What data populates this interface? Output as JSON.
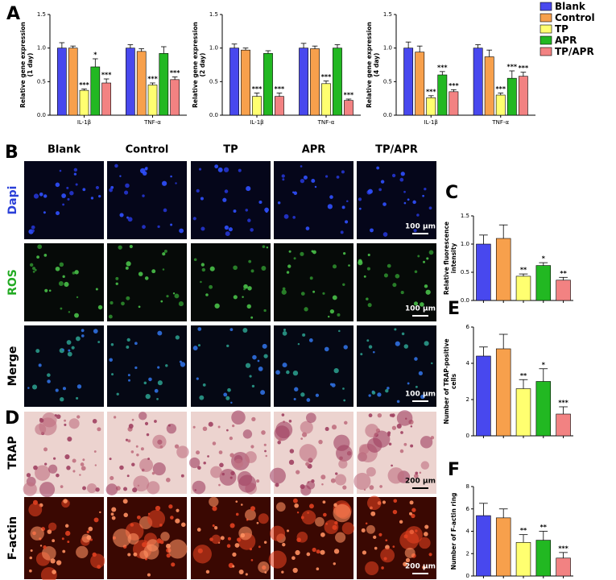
{
  "chart_data": [
    {
      "type": "grouped-bar",
      "ylabel": [
        "Relative gene expression",
        "(1 day)"
      ],
      "categories": [
        "IL-1β",
        "TNF-α"
      ],
      "ylim": [
        0,
        1.5
      ],
      "yticks": [
        {
          "value": 0,
          "label": "0.0"
        },
        0.5,
        {
          "value": 1,
          "label": "1.0"
        },
        1.5
      ],
      "series": [
        {
          "name": "Blank",
          "color": "#4848ee",
          "values": [
            1.0,
            1.0
          ],
          "errors": [
            0.08,
            0.05
          ],
          "annotations": [
            null,
            null
          ]
        },
        {
          "name": "Control",
          "color": "#f7a04c",
          "values": [
            1.0,
            0.95
          ],
          "errors": [
            0.03,
            0.04
          ],
          "annotations": [
            null,
            null
          ]
        },
        {
          "name": "TP",
          "color": "#ffff70",
          "values": [
            0.37,
            0.45
          ],
          "errors": [
            0.02,
            0.03
          ],
          "annotations": [
            "***",
            "***"
          ]
        },
        {
          "name": "APR",
          "color": "#22b822",
          "values": [
            0.72,
            0.92
          ],
          "errors": [
            0.12,
            0.1
          ],
          "annotations": [
            "*",
            null
          ]
        },
        {
          "name": "TP/APR",
          "color": "#f28282",
          "values": [
            0.48,
            0.53
          ],
          "errors": [
            0.06,
            0.04
          ],
          "annotations": [
            "***",
            "***"
          ]
        }
      ]
    },
    {
      "type": "grouped-bar",
      "ylabel": [
        "Relative gene expression",
        "(2 day)"
      ],
      "categories": [
        "IL-1β",
        "TNF-α"
      ],
      "ylim": [
        0,
        1.5
      ],
      "yticks": [
        {
          "value": 0,
          "label": "0.0"
        },
        0.5,
        {
          "value": 1,
          "label": "1.0"
        },
        1.5
      ],
      "series": [
        {
          "color": "#4848ee",
          "values": [
            1.0,
            1.0
          ],
          "errors": [
            0.06,
            0.07
          ],
          "annotations": [
            null,
            null
          ]
        },
        {
          "color": "#f7a04c",
          "values": [
            0.97,
            0.99
          ],
          "errors": [
            0.03,
            0.04
          ],
          "annotations": [
            null,
            null
          ]
        },
        {
          "color": "#ffff70",
          "values": [
            0.28,
            0.47
          ],
          "errors": [
            0.05,
            0.04
          ],
          "annotations": [
            "***",
            "***"
          ]
        },
        {
          "color": "#22b822",
          "values": [
            0.92,
            1.0
          ],
          "errors": [
            0.04,
            0.05
          ],
          "annotations": [
            null,
            null
          ]
        },
        {
          "color": "#f28282",
          "values": [
            0.28,
            0.22
          ],
          "errors": [
            0.05,
            0.02
          ],
          "annotations": [
            "***",
            "***"
          ]
        }
      ]
    },
    {
      "type": "grouped-bar",
      "ylabel": [
        "Relative gene expression",
        "(4 day)"
      ],
      "categories": [
        "IL-1β",
        "TNF-α"
      ],
      "ylim": [
        0,
        1.5
      ],
      "yticks": [
        {
          "value": 0,
          "label": "0.0"
        },
        0.5,
        {
          "value": 1,
          "label": "1.0"
        },
        1.5
      ],
      "series": [
        {
          "color": "#4848ee",
          "values": [
            1.0,
            1.0
          ],
          "errors": [
            0.09,
            0.05
          ],
          "annotations": [
            null,
            null
          ]
        },
        {
          "color": "#f7a04c",
          "values": [
            0.94,
            0.87
          ],
          "errors": [
            0.09,
            0.1
          ],
          "annotations": [
            null,
            null
          ]
        },
        {
          "color": "#ffff70",
          "values": [
            0.26,
            0.3
          ],
          "errors": [
            0.03,
            0.03
          ],
          "annotations": [
            "***",
            "***"
          ]
        },
        {
          "color": "#22b822",
          "values": [
            0.6,
            0.55
          ],
          "errors": [
            0.05,
            0.11
          ],
          "annotations": [
            "***",
            "***"
          ]
        },
        {
          "color": "#f28282",
          "values": [
            0.35,
            0.58
          ],
          "errors": [
            0.03,
            0.06
          ],
          "annotations": [
            "***",
            "***"
          ]
        }
      ]
    },
    {
      "type": "bar",
      "ylabel": [
        "Relative fluorescence",
        "intensity"
      ],
      "ylim": [
        0,
        1.5
      ],
      "yticks": [
        {
          "value": 0,
          "label": "0.0"
        },
        0.5,
        {
          "value": 1,
          "label": "1.0"
        },
        1.5
      ],
      "values": [
        1.0,
        1.1,
        0.43,
        0.62,
        0.36
      ],
      "errors": [
        0.16,
        0.24,
        0.04,
        0.05,
        0.05
      ],
      "colors": [
        "#4848ee",
        "#f7a04c",
        "#ffff70",
        "#22b822",
        "#f28282"
      ],
      "annotations": [
        null,
        null,
        "**",
        "*",
        "**"
      ]
    },
    {
      "type": "bar",
      "ylabel": [
        "Number of TRAP-positive",
        "cells"
      ],
      "ylim": [
        0,
        6
      ],
      "yticks": [
        0,
        2,
        4,
        6
      ],
      "values": [
        4.4,
        4.8,
        2.6,
        3.0,
        1.2
      ],
      "errors": [
        0.5,
        0.8,
        0.5,
        0.7,
        0.4
      ],
      "colors": [
        "#4848ee",
        "#f7a04c",
        "#ffff70",
        "#22b822",
        "#f28282"
      ],
      "annotations": [
        null,
        null,
        "**",
        "*",
        "***"
      ]
    },
    {
      "type": "bar",
      "ylabel": [
        "Number of F-actin ring"
      ],
      "ylim": [
        0,
        8
      ],
      "yticks": [
        0,
        2,
        4,
        6,
        8
      ],
      "values": [
        5.4,
        5.2,
        3.0,
        3.2,
        1.6
      ],
      "errors": [
        1.1,
        0.8,
        0.7,
        0.8,
        0.5
      ],
      "colors": [
        "#4848ee",
        "#f7a04c",
        "#ffff70",
        "#22b822",
        "#f28282"
      ],
      "annotations": [
        null,
        null,
        "**",
        "**",
        "***"
      ]
    }
  ],
  "figure": {
    "panel_labels": [
      "A",
      "B",
      "C",
      "D",
      "E",
      "F"
    ],
    "groups": [
      "Blank",
      "Control",
      "TP",
      "APR",
      "TP/APR"
    ],
    "rows": [
      {
        "label": "Dapi",
        "color": "#2a3fd8"
      },
      {
        "label": "ROS",
        "color": "#22aa22"
      },
      {
        "label": "Merge",
        "color": "#000000"
      },
      {
        "label": "TRAP",
        "color": "#000000"
      },
      {
        "label": "F-actin",
        "color": "#000000"
      }
    ],
    "scale_bars": [
      "100 µm",
      "100 µm",
      "100 µm",
      "200 µm",
      "200 µm"
    ]
  }
}
